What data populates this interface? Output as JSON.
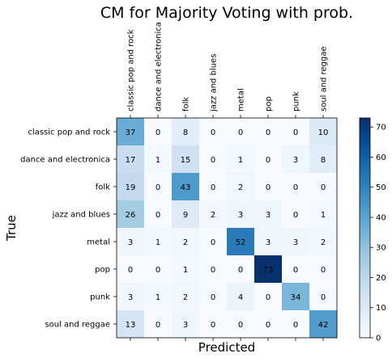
{
  "chart_data": {
    "type": "heatmap",
    "title": "CM for Majority Voting with prob.",
    "xlabel": "Predicted",
    "ylabel": "True",
    "x_categories": [
      "classic pop and rock",
      "dance and electronica",
      "folk",
      "jazz and blues",
      "metal",
      "pop",
      "punk",
      "soul and reggae"
    ],
    "y_categories": [
      "classic pop and rock",
      "dance and electronica",
      "folk",
      "jazz and blues",
      "metal",
      "pop",
      "punk",
      "soul and reggae"
    ],
    "values": [
      [
        37,
        0,
        8,
        0,
        0,
        0,
        0,
        10
      ],
      [
        17,
        1,
        15,
        0,
        1,
        0,
        3,
        8
      ],
      [
        19,
        0,
        43,
        0,
        2,
        0,
        0,
        0
      ],
      [
        26,
        0,
        9,
        2,
        3,
        3,
        0,
        1
      ],
      [
        3,
        1,
        2,
        0,
        52,
        3,
        3,
        2
      ],
      [
        0,
        0,
        1,
        0,
        0,
        73,
        0,
        0
      ],
      [
        3,
        1,
        2,
        0,
        4,
        0,
        34,
        0
      ],
      [
        13,
        0,
        3,
        0,
        0,
        0,
        0,
        42
      ]
    ],
    "colormap": "Blues",
    "color_range": [
      0,
      73
    ],
    "colorbar_ticks": [
      0,
      10,
      20,
      30,
      40,
      50,
      60,
      70
    ],
    "grid": false
  }
}
